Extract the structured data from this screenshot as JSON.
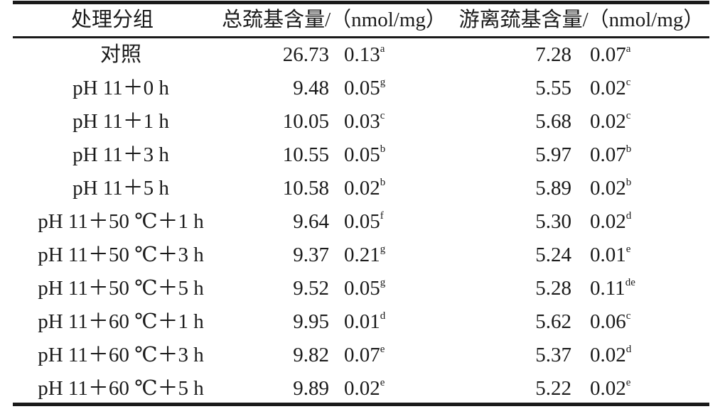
{
  "table": {
    "headers": [
      "处理分组",
      "总巯基含量/（nmol/mg）",
      "游离巯基含量/（nmol/mg）"
    ],
    "rows": [
      {
        "group": "对照",
        "total_mean": "26.73",
        "total_sd": "0.13",
        "total_sig": "a",
        "free_mean": "7.28",
        "free_sd": "0.07",
        "free_sig": "a"
      },
      {
        "group": "pH 11＋0 h",
        "total_mean": "9.48",
        "total_sd": "0.05",
        "total_sig": "g",
        "free_mean": "5.55",
        "free_sd": "0.02",
        "free_sig": "c"
      },
      {
        "group": "pH 11＋1 h",
        "total_mean": "10.05",
        "total_sd": "0.03",
        "total_sig": "c",
        "free_mean": "5.68",
        "free_sd": "0.02",
        "free_sig": "c"
      },
      {
        "group": "pH 11＋3 h",
        "total_mean": "10.55",
        "total_sd": "0.05",
        "total_sig": "b",
        "free_mean": "5.97",
        "free_sd": "0.07",
        "free_sig": "b"
      },
      {
        "group": "pH 11＋5 h",
        "total_mean": "10.58",
        "total_sd": "0.02",
        "total_sig": "b",
        "free_mean": "5.89",
        "free_sd": "0.02",
        "free_sig": "b"
      },
      {
        "group": "pH 11＋50 ℃＋1 h",
        "total_mean": "9.64",
        "total_sd": "0.05",
        "total_sig": "f",
        "free_mean": "5.30",
        "free_sd": "0.02",
        "free_sig": "d"
      },
      {
        "group": "pH 11＋50 ℃＋3 h",
        "total_mean": "9.37",
        "total_sd": "0.21",
        "total_sig": "g",
        "free_mean": "5.24",
        "free_sd": "0.01",
        "free_sig": "e"
      },
      {
        "group": "pH 11＋50 ℃＋5 h",
        "total_mean": "9.52",
        "total_sd": "0.05",
        "total_sig": "g",
        "free_mean": "5.28",
        "free_sd": "0.11",
        "free_sig": "de"
      },
      {
        "group": "pH 11＋60 ℃＋1 h",
        "total_mean": "9.95",
        "total_sd": "0.01",
        "total_sig": "d",
        "free_mean": "5.62",
        "free_sd": "0.06",
        "free_sig": "c"
      },
      {
        "group": "pH 11＋60 ℃＋3 h",
        "total_mean": "9.82",
        "total_sd": "0.07",
        "total_sig": "e",
        "free_mean": "5.37",
        "free_sd": "0.02",
        "free_sig": "d"
      },
      {
        "group": "pH 11＋60 ℃＋5 h",
        "total_mean": "9.89",
        "total_sd": "0.02",
        "total_sig": "e",
        "free_mean": "5.22",
        "free_sd": "0.02",
        "free_sig": "e"
      }
    ]
  }
}
